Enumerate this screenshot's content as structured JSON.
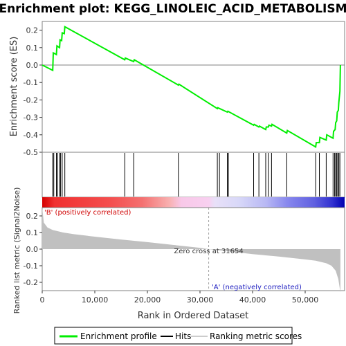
{
  "title": "Enrichment plot: KEGG_LINOLEIC_ACID_METABOLISM",
  "chart_data": {
    "type": "line",
    "es_panel": {
      "ylabel": "Enrichment score (ES)",
      "ylim": [
        -0.5,
        0.25
      ],
      "y_ticks": [
        "0.2",
        "0.1",
        "0.0",
        "-0.1",
        "-0.2",
        "-0.3",
        "-0.4",
        "-0.5"
      ],
      "series": [
        {
          "name": "Enrichment profile",
          "color": "#00ee00",
          "x": [
            0,
            2000,
            2100,
            2700,
            2800,
            3300,
            3400,
            3700,
            3800,
            4200,
            4300,
            15700,
            15800,
            17400,
            17500,
            25900,
            26000,
            33300,
            33400,
            35200,
            35300,
            40200,
            40300,
            41200,
            41300,
            42500,
            42600,
            43000,
            43100,
            43600,
            43700,
            46500,
            46600,
            52000,
            52100,
            52700,
            52800,
            54000,
            54100,
            55300,
            55400,
            55700,
            55800,
            56000,
            56100,
            56300,
            56400,
            56600,
            56700
          ],
          "y": [
            0.0,
            -0.03,
            0.07,
            0.06,
            0.11,
            0.1,
            0.145,
            0.14,
            0.185,
            0.18,
            0.22,
            0.03,
            0.04,
            0.02,
            0.03,
            -0.115,
            -0.11,
            -0.25,
            -0.245,
            -0.27,
            -0.265,
            -0.345,
            -0.34,
            -0.355,
            -0.35,
            -0.37,
            -0.355,
            -0.355,
            -0.345,
            -0.35,
            -0.34,
            -0.39,
            -0.375,
            -0.47,
            -0.445,
            -0.445,
            -0.415,
            -0.43,
            -0.4,
            -0.42,
            -0.38,
            -0.37,
            -0.33,
            -0.32,
            -0.27,
            -0.26,
            -0.215,
            -0.15,
            0.0
          ]
        }
      ]
    },
    "hits": [
      2000,
      2200,
      2700,
      2900,
      3300,
      3500,
      3800,
      4300,
      15700,
      17400,
      25900,
      33300,
      33700,
      35200,
      35400,
      40200,
      41200,
      42500,
      43000,
      43600,
      46500,
      52000,
      52700,
      54000,
      55300,
      55600,
      55800,
      56000,
      56200,
      56400,
      56600
    ],
    "heat_bar_label_pos": "'B' (positively correlated)",
    "heat_bar_label_neg": "'A' (negatively correlated)",
    "metric_panel": {
      "ylabel": "Ranked list metric (Signal2Noise)",
      "ylim": [
        -0.25,
        0.25
      ],
      "y_ticks": [
        "0.2",
        "0.1",
        "0.0",
        "-0.1",
        "-0.2"
      ],
      "x": [
        0,
        300,
        1000,
        2000,
        4000,
        6000,
        10000,
        15000,
        20000,
        25000,
        30000,
        31654,
        35000,
        40000,
        45000,
        50000,
        52000,
        54000,
        55000,
        55800,
        56300,
        56700
      ],
      "y": [
        0.25,
        0.16,
        0.13,
        0.115,
        0.1,
        0.09,
        0.075,
        0.058,
        0.042,
        0.025,
        0.008,
        0.0,
        -0.012,
        -0.03,
        -0.045,
        -0.062,
        -0.07,
        -0.085,
        -0.1,
        -0.13,
        -0.18,
        -0.26
      ],
      "zero_cross_label": "Zero cross at 31654",
      "zero_cross": 31654
    },
    "xlabel": "Rank in Ordered Dataset",
    "xlim": [
      0,
      57500
    ],
    "x_ticks": [
      "0",
      "10,000",
      "20,000",
      "30,000",
      "40,000",
      "50,000"
    ],
    "x_tick_values": [
      0,
      10000,
      20000,
      30000,
      40000,
      50000
    ]
  },
  "legend": {
    "items": [
      {
        "label": "Enrichment profile",
        "color": "#00ee00"
      },
      {
        "label": "Hits",
        "color": "#000000"
      },
      {
        "label": "Ranking metric scores",
        "color": "#cccccc"
      }
    ]
  }
}
